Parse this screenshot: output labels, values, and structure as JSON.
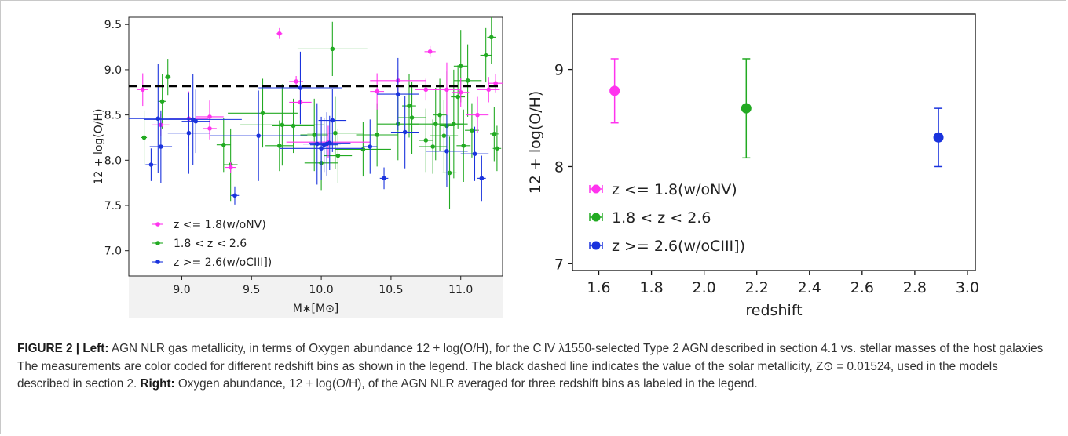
{
  "chart_data": [
    {
      "type": "scatter",
      "panel": "left",
      "xlabel": "M∗[M⊙]",
      "ylabel": "12 + log(O/H)",
      "xlim": [
        8.62,
        11.3
      ],
      "ylim": [
        6.72,
        9.58
      ],
      "xticks": [
        9.0,
        9.5,
        10.0,
        10.5,
        11.0
      ],
      "xtick_labels": [
        "9.0",
        "9.5",
        "10.0",
        "10.5",
        "11.0"
      ],
      "yticks": [
        7.0,
        7.5,
        8.0,
        8.5,
        9.0,
        9.5
      ],
      "ytick_labels": [
        "7.0",
        "7.5",
        "8.0",
        "8.5",
        "9.0",
        "9.5"
      ],
      "solar_metallicity_line": 8.82,
      "legend_position": "lower-left",
      "series": [
        {
          "name": "z <= 1.8(w/oNV)",
          "color": "#ff33ee",
          "points": [
            {
              "x": 8.72,
              "y": 8.78,
              "xerr": 0.04,
              "yerr": 0.18
            },
            {
              "x": 8.85,
              "y": 8.39,
              "xerr": 0.06,
              "yerr": 0.12
            },
            {
              "x": 9.05,
              "y": 8.46,
              "xerr": 0.14,
              "yerr": 0.3
            },
            {
              "x": 9.2,
              "y": 8.48,
              "xerr": 0.1,
              "yerr": 0.18
            },
            {
              "x": 9.2,
              "y": 8.35,
              "xerr": 0.05,
              "yerr": 0.12
            },
            {
              "x": 9.35,
              "y": 7.92,
              "xerr": 0.04,
              "yerr": 0.06
            },
            {
              "x": 9.7,
              "y": 9.4,
              "xerr": 0.02,
              "yerr": 0.06
            },
            {
              "x": 9.82,
              "y": 8.87,
              "xerr": 0.05,
              "yerr": 0.06
            },
            {
              "x": 9.85,
              "y": 8.64,
              "xerr": 0.08,
              "yerr": 0.18
            },
            {
              "x": 10.05,
              "y": 8.2,
              "xerr": 0.3,
              "yerr": 0.18
            },
            {
              "x": 10.4,
              "y": 8.76,
              "xerr": 0.05,
              "yerr": 0.2
            },
            {
              "x": 10.55,
              "y": 8.88,
              "xerr": 0.2,
              "yerr": 0.12
            },
            {
              "x": 10.75,
              "y": 8.78,
              "xerr": 0.08,
              "yerr": 0.12
            },
            {
              "x": 10.78,
              "y": 9.2,
              "xerr": 0.04,
              "yerr": 0.06
            },
            {
              "x": 10.9,
              "y": 8.78,
              "xerr": 0.1,
              "yerr": 0.3
            },
            {
              "x": 11.0,
              "y": 8.75,
              "xerr": 0.06,
              "yerr": 0.16
            },
            {
              "x": 11.12,
              "y": 8.5,
              "xerr": 0.08,
              "yerr": 0.2
            },
            {
              "x": 11.2,
              "y": 8.78,
              "xerr": 0.08,
              "yerr": 0.14
            },
            {
              "x": 11.25,
              "y": 8.85,
              "xerr": 0.05,
              "yerr": 0.1
            }
          ]
        },
        {
          "name": "1.8 < z < 2.6",
          "color": "#22aa22",
          "points": [
            {
              "x": 8.73,
              "y": 8.25,
              "xerr": 0.02,
              "yerr": 0.3
            },
            {
              "x": 8.86,
              "y": 8.65,
              "xerr": 0.03,
              "yerr": 0.3
            },
            {
              "x": 8.9,
              "y": 8.92,
              "xerr": 0.02,
              "yerr": 0.2
            },
            {
              "x": 9.3,
              "y": 8.17,
              "xerr": 0.05,
              "yerr": 0.3
            },
            {
              "x": 9.35,
              "y": 7.95,
              "xerr": 0.05,
              "yerr": 0.4
            },
            {
              "x": 9.58,
              "y": 8.52,
              "xerr": 0.25,
              "yerr": 0.38
            },
            {
              "x": 9.7,
              "y": 8.16,
              "xerr": 0.1,
              "yerr": 0.28
            },
            {
              "x": 9.72,
              "y": 8.39,
              "xerr": 0.3,
              "yerr": 0.45
            },
            {
              "x": 9.8,
              "y": 8.38,
              "xerr": 0.15,
              "yerr": 0.3
            },
            {
              "x": 9.95,
              "y": 8.28,
              "xerr": 0.1,
              "yerr": 0.4
            },
            {
              "x": 10.0,
              "y": 7.97,
              "xerr": 0.12,
              "yerr": 0.3
            },
            {
              "x": 10.08,
              "y": 9.23,
              "xerr": 0.25,
              "yerr": 0.3
            },
            {
              "x": 10.1,
              "y": 8.3,
              "xerr": 0.2,
              "yerr": 0.4
            },
            {
              "x": 10.12,
              "y": 8.05,
              "xerr": 0.1,
              "yerr": 0.3
            },
            {
              "x": 10.3,
              "y": 8.12,
              "xerr": 0.2,
              "yerr": 0.3
            },
            {
              "x": 10.4,
              "y": 8.28,
              "xerr": 0.15,
              "yerr": 0.35
            },
            {
              "x": 10.55,
              "y": 8.4,
              "xerr": 0.15,
              "yerr": 0.4
            },
            {
              "x": 10.63,
              "y": 8.6,
              "xerr": 0.05,
              "yerr": 0.35
            },
            {
              "x": 10.65,
              "y": 8.47,
              "xerr": 0.1,
              "yerr": 0.4
            },
            {
              "x": 10.75,
              "y": 8.22,
              "xerr": 0.05,
              "yerr": 0.35
            },
            {
              "x": 10.8,
              "y": 8.15,
              "xerr": 0.1,
              "yerr": 0.3
            },
            {
              "x": 10.82,
              "y": 8.4,
              "xerr": 0.2,
              "yerr": 0.4
            },
            {
              "x": 10.85,
              "y": 8.5,
              "xerr": 0.05,
              "yerr": 0.4
            },
            {
              "x": 10.88,
              "y": 8.27,
              "xerr": 0.1,
              "yerr": 0.4
            },
            {
              "x": 10.9,
              "y": 8.38,
              "xerr": 0.05,
              "yerr": 0.6
            },
            {
              "x": 10.92,
              "y": 7.86,
              "xerr": 0.05,
              "yerr": 0.4
            },
            {
              "x": 10.95,
              "y": 8.4,
              "xerr": 0.1,
              "yerr": 0.6
            },
            {
              "x": 10.98,
              "y": 8.7,
              "xerr": 0.05,
              "yerr": 0.35
            },
            {
              "x": 11.0,
              "y": 9.04,
              "xerr": 0.05,
              "yerr": 0.4
            },
            {
              "x": 11.02,
              "y": 8.16,
              "xerr": 0.05,
              "yerr": 0.4
            },
            {
              "x": 11.05,
              "y": 8.88,
              "xerr": 0.1,
              "yerr": 0.4
            },
            {
              "x": 11.08,
              "y": 8.33,
              "xerr": 0.05,
              "yerr": 0.3
            },
            {
              "x": 11.18,
              "y": 9.16,
              "xerr": 0.04,
              "yerr": 0.3
            },
            {
              "x": 11.22,
              "y": 9.36,
              "xerr": 0.03,
              "yerr": 0.3
            },
            {
              "x": 11.24,
              "y": 8.29,
              "xerr": 0.03,
              "yerr": 0.3
            },
            {
              "x": 11.26,
              "y": 8.13,
              "xerr": 0.03,
              "yerr": 0.25
            }
          ]
        },
        {
          "name": "z >= 2.6(w/oCIII])",
          "color": "#1a33dd",
          "points": [
            {
              "x": 8.78,
              "y": 7.95,
              "xerr": 0.04,
              "yerr": 0.18
            },
            {
              "x": 8.83,
              "y": 8.46,
              "xerr": 0.25,
              "yerr": 0.6
            },
            {
              "x": 8.85,
              "y": 8.15,
              "xerr": 0.08,
              "yerr": 0.4
            },
            {
              "x": 9.05,
              "y": 8.3,
              "xerr": 0.15,
              "yerr": 0.45
            },
            {
              "x": 9.08,
              "y": 8.45,
              "xerr": 0.35,
              "yerr": 0.5
            },
            {
              "x": 9.1,
              "y": 8.43,
              "xerr": 0.1,
              "yerr": 0.35
            },
            {
              "x": 9.38,
              "y": 7.61,
              "xerr": 0.03,
              "yerr": 0.1
            },
            {
              "x": 9.55,
              "y": 8.27,
              "xerr": 0.35,
              "yerr": 0.5
            },
            {
              "x": 9.85,
              "y": 8.8,
              "xerr": 0.3,
              "yerr": 0.4
            },
            {
              "x": 9.97,
              "y": 8.18,
              "xerr": 0.1,
              "yerr": 0.45
            },
            {
              "x": 10.0,
              "y": 8.13,
              "xerr": 0.3,
              "yerr": 0.35
            },
            {
              "x": 10.02,
              "y": 8.17,
              "xerr": 0.1,
              "yerr": 0.3
            },
            {
              "x": 10.04,
              "y": 8.18,
              "xerr": 0.1,
              "yerr": 0.35
            },
            {
              "x": 10.06,
              "y": 8.19,
              "xerr": 0.15,
              "yerr": 0.3
            },
            {
              "x": 10.08,
              "y": 8.44,
              "xerr": 0.1,
              "yerr": 0.35
            },
            {
              "x": 10.35,
              "y": 8.15,
              "xerr": 0.05,
              "yerr": 0.3
            },
            {
              "x": 10.45,
              "y": 7.8,
              "xerr": 0.03,
              "yerr": 0.12
            },
            {
              "x": 10.55,
              "y": 8.73,
              "xerr": 0.15,
              "yerr": 0.4
            },
            {
              "x": 10.6,
              "y": 8.31,
              "xerr": 0.1,
              "yerr": 0.4
            },
            {
              "x": 10.9,
              "y": 8.1,
              "xerr": 0.15,
              "yerr": 0.4
            },
            {
              "x": 11.1,
              "y": 8.07,
              "xerr": 0.1,
              "yerr": 0.3
            },
            {
              "x": 11.15,
              "y": 7.8,
              "xerr": 0.03,
              "yerr": 0.25
            }
          ]
        }
      ]
    },
    {
      "type": "scatter",
      "panel": "right",
      "xlabel": "redshift",
      "ylabel": "12 + log(O/H)",
      "xlim": [
        1.5,
        3.03
      ],
      "ylim": [
        6.93,
        9.57
      ],
      "xticks": [
        1.6,
        1.8,
        2.0,
        2.2,
        2.4,
        2.6,
        2.8,
        3.0
      ],
      "xtick_labels": [
        "1.6",
        "1.8",
        "2.0",
        "2.2",
        "2.4",
        "2.6",
        "2.8",
        "3.0"
      ],
      "yticks": [
        7,
        8,
        9
      ],
      "ytick_labels": [
        "7",
        "8",
        "9"
      ],
      "legend_position": "lower-left",
      "series": [
        {
          "name": "z <= 1.8(w/oNV)",
          "color": "#ff33ee",
          "points": [
            {
              "x": 1.66,
              "y": 8.78,
              "yerr_low": 0.33,
              "yerr_high": 0.33
            }
          ]
        },
        {
          "name": "1.8 < z < 2.6",
          "color": "#22aa22",
          "points": [
            {
              "x": 2.16,
              "y": 8.6,
              "yerr_low": 0.51,
              "yerr_high": 0.51
            }
          ]
        },
        {
          "name": "z >= 2.6(w/oCIII])",
          "color": "#1a33dd",
          "points": [
            {
              "x": 2.89,
              "y": 8.3,
              "yerr_low": 0.3,
              "yerr_high": 0.3
            }
          ]
        }
      ]
    }
  ],
  "caption": {
    "figure_label": "FIGURE 2 | ",
    "left_label": "Left:",
    "text_1": " AGN NLR gas metallicity, in terms of Oxygen abundance 12 + log(O/H), for the C IV λ1550-selected Type 2 AGN described in section 4.1 vs. stellar masses of the host galaxies The measurements are color coded for different redshift bins as shown in the legend. The black dashed line indicates the value of the solar metallicity, Z⊙ = 0.01524, used in the models described in section 2. ",
    "right_label": "Right:",
    "text_2": " Oxygen abundance, 12 + log(O/H), of the AGN NLR averaged for three redshift bins as labeled in the legend."
  }
}
